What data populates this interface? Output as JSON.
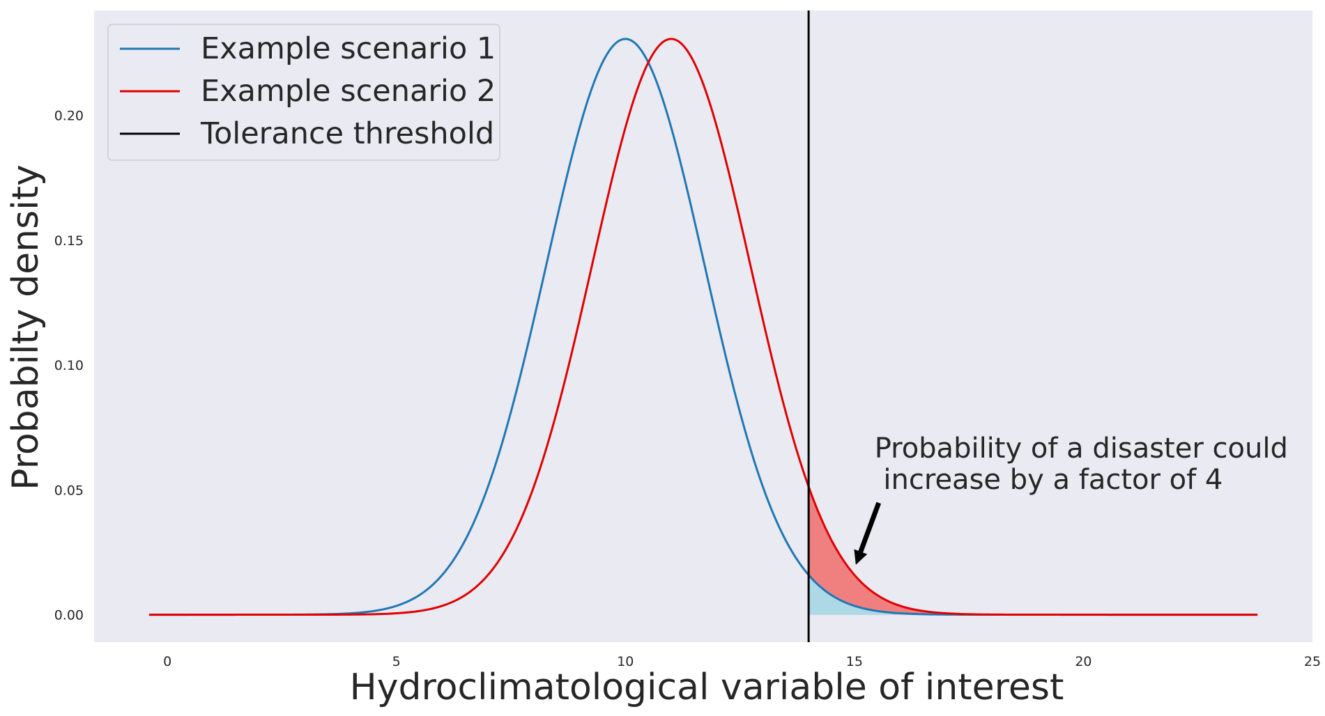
{
  "chart_data": {
    "type": "line",
    "title": "",
    "xlabel": "Hydroclimatological  variable of interest",
    "ylabel": "Probabilty density",
    "xlim": [
      -1.6,
      25
    ],
    "ylim": [
      -0.011,
      0.242
    ],
    "x_ticks": [
      0,
      5,
      10,
      15,
      20,
      25
    ],
    "y_ticks": [
      0.0,
      0.05,
      0.1,
      0.15,
      0.2
    ],
    "x_tick_labels": [
      "0",
      "5",
      "10",
      "15",
      "20",
      "25"
    ],
    "y_tick_labels": [
      "0.00",
      "0.05",
      "0.10",
      "0.15",
      "0.20"
    ],
    "grid": false,
    "background": "#eaeaf2",
    "legend_position": "upper-left",
    "x_range": [
      -0.4,
      23.8
    ],
    "series": [
      {
        "name": "Example scenario 1",
        "kind": "normal-pdf",
        "mean": 10,
        "std": 1.73,
        "color": "#1f77b4"
      },
      {
        "name": "Example scenario 2",
        "kind": "normal-pdf",
        "mean": 11,
        "std": 1.73,
        "color": "#e00000"
      }
    ],
    "threshold": {
      "name": "Tolerance threshold",
      "x": 14,
      "color": "#000000"
    },
    "shaded_tails": [
      {
        "series": "Example scenario 1",
        "from_x": 14,
        "color": "#add8e6"
      },
      {
        "series": "Example scenario 2",
        "from_x": 14,
        "color": "#f08080"
      }
    ],
    "annotation": {
      "lines": [
        "Probability of a disaster could",
        " increase by a factor of 4"
      ],
      "text_x": 15.5,
      "text_y": 0.064,
      "arrow_to_x": 15.0,
      "arrow_to_y": 0.02
    }
  }
}
